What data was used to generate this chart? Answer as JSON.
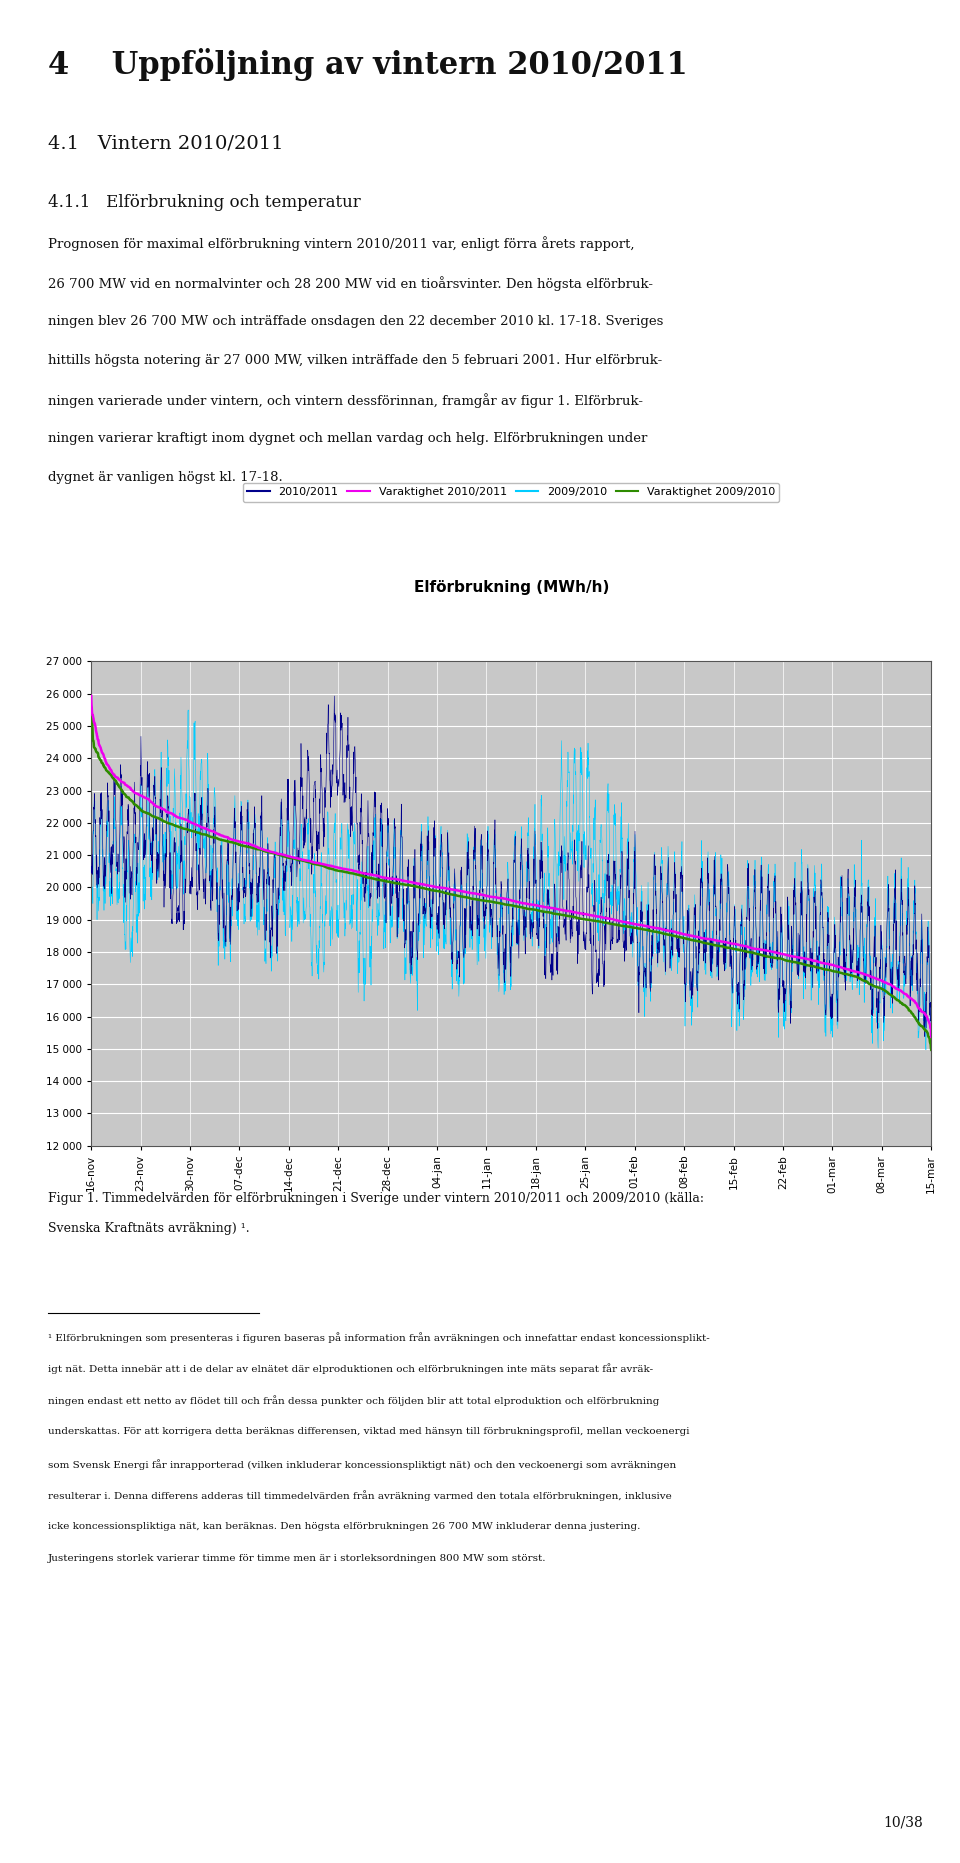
{
  "title": "Elförbrukning (MWh/h)",
  "chart_bg": "#c8c8c8",
  "page_bg": "#ffffff",
  "ylim": [
    12000,
    27000
  ],
  "ytick_step": 1000,
  "legend_labels": [
    "2010/2011",
    "Varaktighet 2010/2011",
    "2009/2010",
    "Varaktighet 2009/2010"
  ],
  "series_colors": [
    "#00008B",
    "#FF00FF",
    "#00CCFF",
    "#2E8B00"
  ],
  "xtick_labels": [
    "16-nov",
    "23-nov",
    "30-nov",
    "07-dec",
    "14-dec",
    "21-dec",
    "28-dec",
    "04-jan",
    "11-jan",
    "18-jan",
    "25-jan",
    "01-feb",
    "08-feb",
    "15-feb",
    "22-feb",
    "01-mar",
    "08-mar",
    "15-mar"
  ],
  "heading1_num": "4",
  "heading1_text": "Uppföljning av vintern 2010/2011",
  "heading2": "4.1   Vintern 2010/2011",
  "heading3": "4.1.1   Elförbrukning och temperatur",
  "body_lines": [
    "Prognosen för maximal elförbrukning vintern 2010/2011 var, enligt förra årets rapport,",
    "26 700 MW vid en normalvinter och 28 200 MW vid en tioårsvinter. Den högsta elförbruk-",
    "ningen blev 26 700 MW och inträffade onsdagen den 22 december 2010 kl. 17-18. Sveriges",
    "hittills högsta notering är 27 000 MW, vilken inträffade den 5 februari 2001. Hur elförbruk-",
    "ningen varierade under vintern, och vintern dessförinnan, framgår av figur 1. Elförbruk-",
    "ningen varierar kraftigt inom dygnet och mellan vardag och helg. Elförbrukningen under",
    "dygnet är vanligen högst kl. 17-18."
  ],
  "fig_caption_line1": "Figur 1. Timmedelvärden för elförbrukningen i Sverige under vintern 2010/2011 och 2009/2010 (källa:",
  "fig_caption_line2": "Svenska Kraftnäts avräkning) ¹.",
  "footnote_line": "————————————————————",
  "footnote_lines": [
    "¹ Elförbrukningen som presenteras i figuren baseras på information från avräkningen och innefattar endast koncessionsplikt-",
    "igt nät. Detta innebär att i de delar av elnätet där elproduktionen och elförbrukningen inte mäts separat får avräk-",
    "ningen endast ett netto av flödet till och från dessa punkter och följden blir att total elproduktion och elförbrukning",
    "underskattas. För att korrigera detta beräknas differensen, viktad med hänsyn till förbrukningsprofil, mellan veckoenergi",
    "som Svensk Energi får inrapporterad (vilken inkluderar koncessionspliktigt nät) och den veckoenergi som avräkningen",
    "resulterar i. Denna differens adderas till timmedelvärden från avräkning varmed den totala elförbrukningen, inklusive",
    "icke koncessionspliktiga nät, kan beräknas. Den högsta elförbrukningen 26 700 MW inkluderar denna justering.",
    "Justeringens storlek varierar timme för timme men är i storleksordningen 800 MW som störst."
  ],
  "page_number": "10/38"
}
